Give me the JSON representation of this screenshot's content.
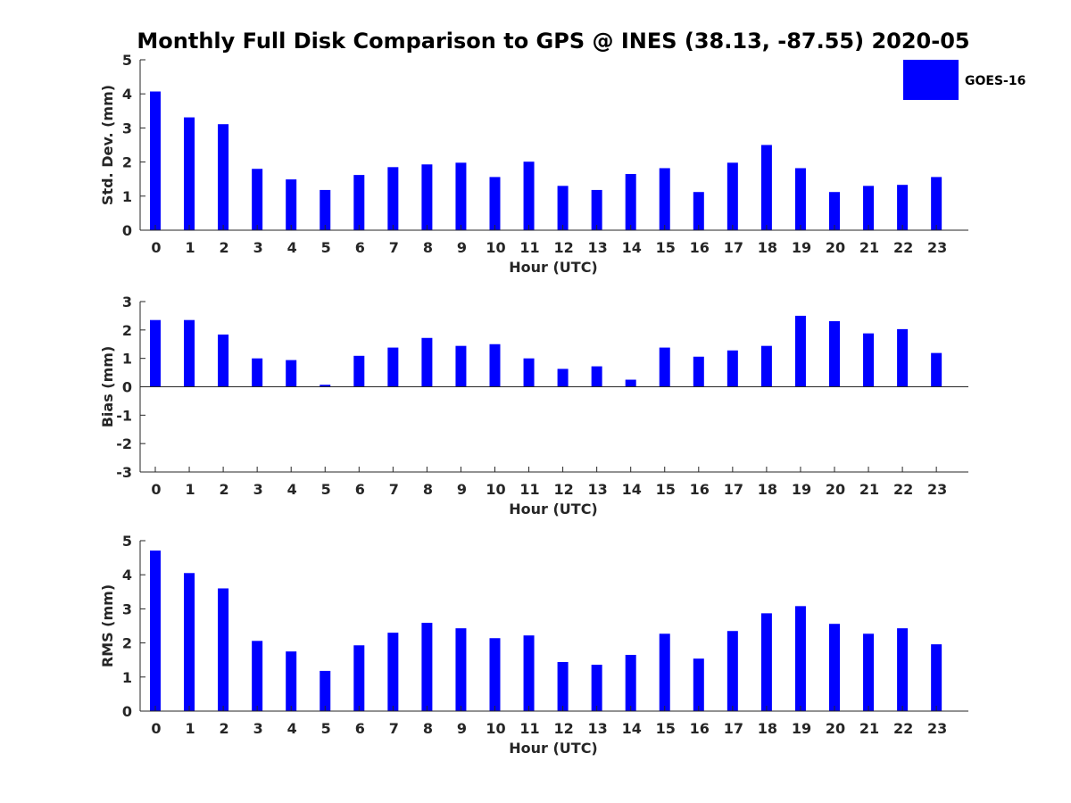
{
  "title": "Monthly Full Disk Comparison to GPS @ INES (38.13, -87.55) 2020-05",
  "colors": {
    "bar": "#0000ff",
    "axis": "#262626"
  },
  "legend": {
    "label": "GOES-16",
    "placement": "top-right"
  },
  "chart_data": [
    {
      "type": "bar",
      "categories": [
        "0",
        "1",
        "2",
        "3",
        "4",
        "5",
        "6",
        "7",
        "8",
        "9",
        "10",
        "11",
        "12",
        "13",
        "14",
        "15",
        "16",
        "17",
        "18",
        "19",
        "20",
        "21",
        "22",
        "23"
      ],
      "series": [
        {
          "name": "GOES-16",
          "values": [
            4.07,
            3.31,
            3.11,
            1.8,
            1.49,
            1.18,
            1.62,
            1.85,
            1.93,
            1.98,
            1.56,
            2.01,
            1.3,
            1.18,
            1.65,
            1.82,
            1.12,
            1.98,
            2.5,
            1.82,
            1.12,
            1.3,
            1.33,
            1.56
          ]
        }
      ],
      "xlabel": "Hour (UTC)",
      "ylabel": "Std. Dev. (mm)",
      "ylim": [
        0,
        5
      ],
      "yticks": [
        "0",
        "1",
        "2",
        "3",
        "4",
        "5"
      ]
    },
    {
      "type": "bar",
      "categories": [
        "0",
        "1",
        "2",
        "3",
        "4",
        "5",
        "6",
        "7",
        "8",
        "9",
        "10",
        "11",
        "12",
        "13",
        "14",
        "15",
        "16",
        "17",
        "18",
        "19",
        "20",
        "21",
        "22",
        "23"
      ],
      "series": [
        {
          "name": "GOES-16",
          "values": [
            2.35,
            2.35,
            1.84,
            1.0,
            0.94,
            0.07,
            1.09,
            1.38,
            1.72,
            1.44,
            1.5,
            1.0,
            0.63,
            0.72,
            0.25,
            1.38,
            1.06,
            1.28,
            1.44,
            2.5,
            2.31,
            1.88,
            2.03,
            1.19
          ]
        }
      ],
      "xlabel": "Hour (UTC)",
      "ylabel": "Bias (mm)",
      "ylim": [
        -3,
        3
      ],
      "yticks": [
        "-3",
        "-2",
        "-1",
        "0",
        "1",
        "2",
        "3"
      ]
    },
    {
      "type": "bar",
      "categories": [
        "0",
        "1",
        "2",
        "3",
        "4",
        "5",
        "6",
        "7",
        "8",
        "9",
        "10",
        "11",
        "12",
        "13",
        "14",
        "15",
        "16",
        "17",
        "18",
        "19",
        "20",
        "21",
        "22",
        "23"
      ],
      "series": [
        {
          "name": "GOES-16",
          "values": [
            4.71,
            4.05,
            3.6,
            2.06,
            1.75,
            1.18,
            1.93,
            2.3,
            2.59,
            2.43,
            2.14,
            2.22,
            1.44,
            1.36,
            1.65,
            2.27,
            1.54,
            2.35,
            2.87,
            3.08,
            2.56,
            2.27,
            2.43,
            1.96
          ]
        }
      ],
      "xlabel": "Hour (UTC)",
      "ylabel": "RMS (mm)",
      "ylim": [
        0,
        5
      ],
      "yticks": [
        "0",
        "1",
        "2",
        "3",
        "4",
        "5"
      ]
    }
  ]
}
